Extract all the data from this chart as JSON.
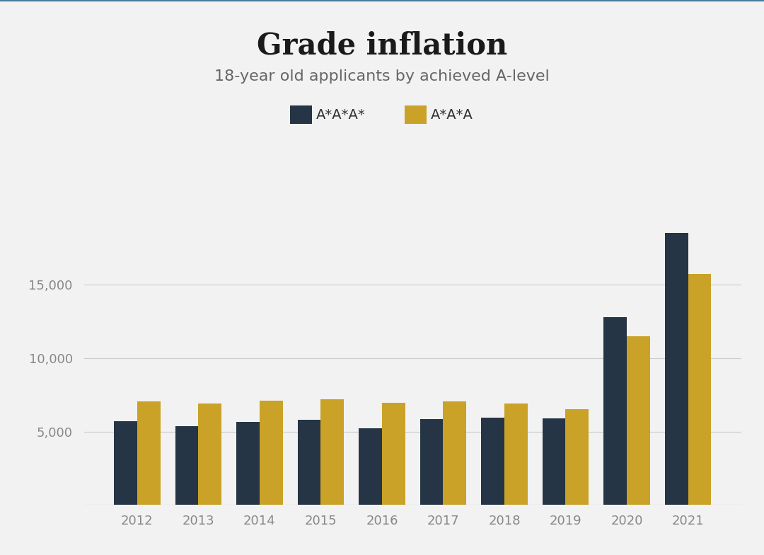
{
  "title": "Grade inflation",
  "subtitle": "18-year old applicants by achieved A-level",
  "years": [
    2012,
    2013,
    2014,
    2015,
    2016,
    2017,
    2018,
    2019,
    2020,
    2021
  ],
  "series1_label": "A*A*A*",
  "series2_label": "A*A*A",
  "series1_values": [
    5700,
    5350,
    5650,
    5800,
    5200,
    5850,
    5950,
    5900,
    12800,
    18500
  ],
  "series2_values": [
    7050,
    6900,
    7100,
    7200,
    6950,
    7050,
    6900,
    6500,
    11500,
    15700
  ],
  "color1": "#253545",
  "color2": "#C9A227",
  "background_color": "#F2F2F2",
  "title_fontsize": 30,
  "subtitle_fontsize": 16,
  "tick_fontsize": 13,
  "legend_fontsize": 14,
  "ylim": [
    0,
    20000
  ],
  "yticks": [
    5000,
    10000,
    15000
  ],
  "bar_width": 0.38,
  "grid_color": "#CCCCCC",
  "top_border_color": "#4a7a9b"
}
